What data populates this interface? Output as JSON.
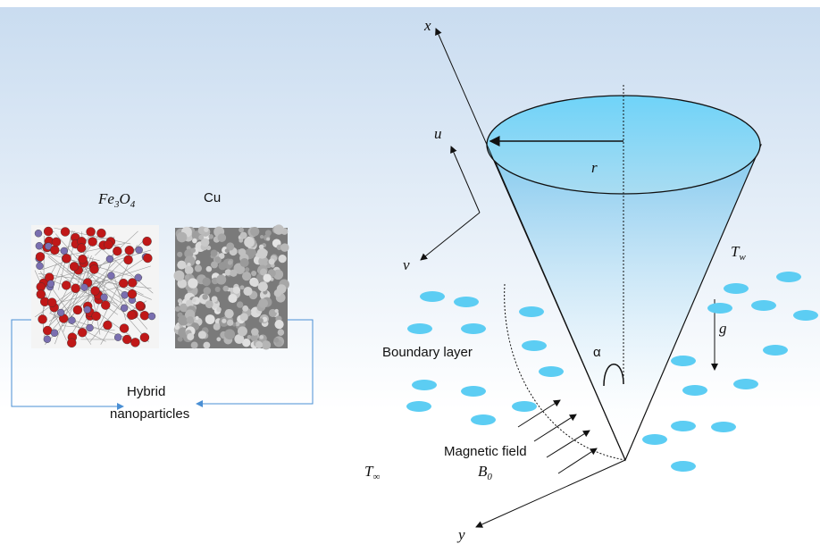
{
  "materials": {
    "fe3o4": {
      "base": "Fe",
      "sub1": "3",
      "mid": "O",
      "sub2": "4"
    },
    "cu": "Cu",
    "hybrid": [
      "Hybrid",
      "nanoparticles"
    ]
  },
  "axes": {
    "x": "x",
    "y": "y",
    "u": "u",
    "v": "v"
  },
  "symbols": {
    "r": "r",
    "alpha": "α",
    "g": "g",
    "t_wall": {
      "base": "T",
      "sub": "w"
    },
    "t_inf": {
      "base": "T",
      "sub": "∞"
    },
    "b0": {
      "base": "B",
      "sub": "0"
    }
  },
  "labels": {
    "boundary_layer": "Boundary layer",
    "magnetic_field": "Magnetic field"
  }
}
